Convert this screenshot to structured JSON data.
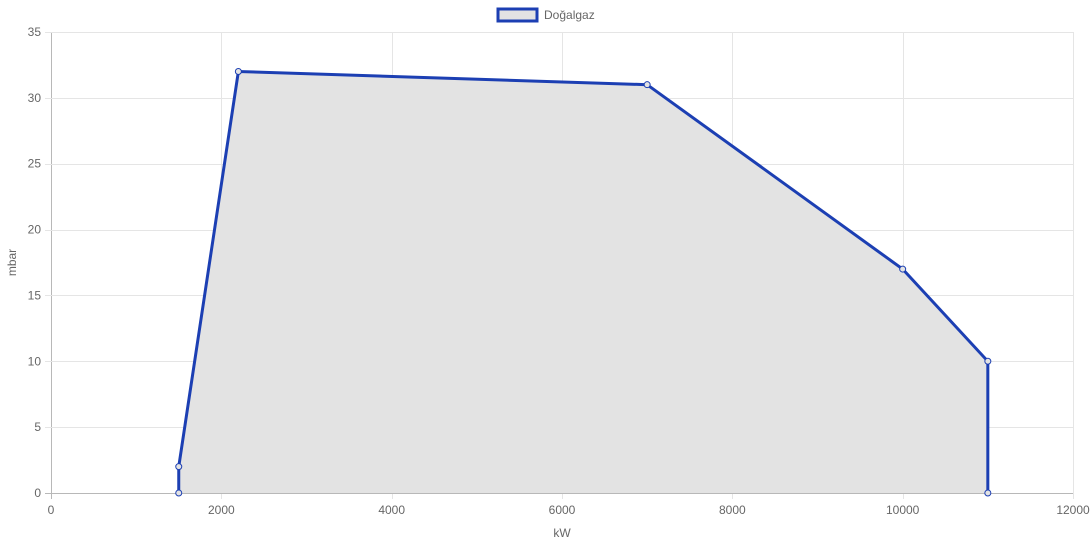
{
  "chart_data": {
    "type": "area",
    "xlabel": "kW",
    "ylabel": "mbar",
    "xlim": [
      0,
      12000
    ],
    "ylim": [
      0,
      35
    ],
    "x_ticks": [
      0,
      2000,
      4000,
      6000,
      8000,
      10000,
      12000
    ],
    "y_ticks": [
      0,
      5,
      10,
      15,
      20,
      25,
      30,
      35
    ],
    "grid": true,
    "legend_position": "top-center",
    "series": [
      {
        "name": "Doğalgaz",
        "points": [
          {
            "x": 1500,
            "y": 0
          },
          {
            "x": 1500,
            "y": 2
          },
          {
            "x": 2200,
            "y": 32
          },
          {
            "x": 7000,
            "y": 31
          },
          {
            "x": 10000,
            "y": 17
          },
          {
            "x": 11000,
            "y": 10
          },
          {
            "x": 11000,
            "y": 0
          }
        ],
        "line_color": "#1c3fb3",
        "fill_color": "#e3e3e3"
      }
    ]
  }
}
